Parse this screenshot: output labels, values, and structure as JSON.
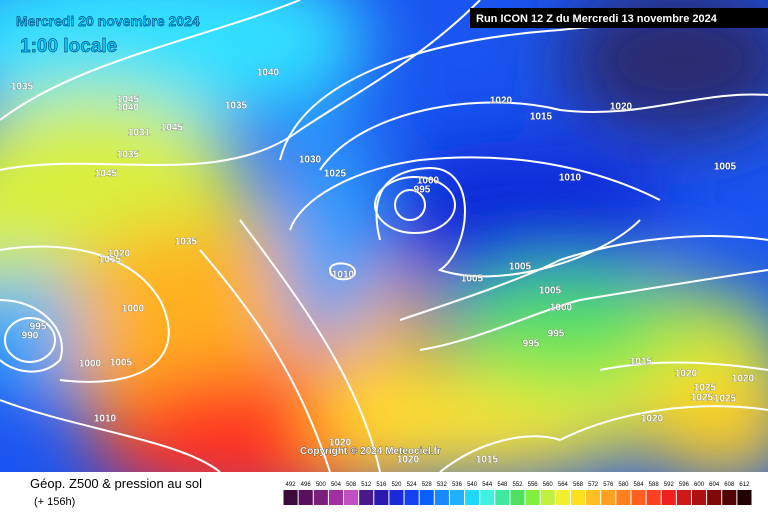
{
  "header": {
    "date": "Mercredi 20 novembre 2024",
    "time": "1:00 locale",
    "run": "Run ICON 12 Z du Mercredi 13 novembre 2024"
  },
  "map": {
    "isobar_labels": [
      1035,
      1045,
      1040,
      1035,
      1040,
      1031,
      1045,
      1035,
      1045,
      1030,
      1025,
      1035,
      1020,
      1015,
      1000,
      995,
      990,
      1000,
      1005,
      1010,
      1010,
      1000,
      995,
      1020,
      1015,
      1020,
      1010,
      1005,
      1005,
      1005,
      1005,
      1000,
      995,
      995,
      1015,
      1020,
      1025,
      1025,
      1025,
      1020,
      1020,
      1020,
      1020,
      1015
    ],
    "copyright": "Copyright © 2024 Meteociel.fr"
  },
  "footer": {
    "title": "Géop. Z500 & pression au sol",
    "lead": "(+ 156h)"
  },
  "legend": {
    "values": [
      492,
      496,
      500,
      504,
      508,
      512,
      516,
      520,
      524,
      528,
      532,
      536,
      540,
      544,
      548,
      552,
      556,
      560,
      564,
      568,
      572,
      576,
      580,
      584,
      588,
      592,
      596,
      600,
      604,
      608,
      612
    ],
    "colors": [
      "#3b0a3b",
      "#5a0e5e",
      "#7a1f7a",
      "#a030a0",
      "#c050c0",
      "#4a1a8a",
      "#2a1ab0",
      "#1a2ad8",
      "#1540f0",
      "#0a60ff",
      "#1a88ff",
      "#20b0ff",
      "#20d8ff",
      "#40f0e0",
      "#40e8a0",
      "#50e060",
      "#80f040",
      "#c0f040",
      "#f0f030",
      "#ffe020",
      "#ffc020",
      "#ffa020",
      "#ff8020",
      "#ff6020",
      "#ff4020",
      "#f02020",
      "#d01818",
      "#b01010",
      "#800808",
      "#500404",
      "#200000"
    ]
  }
}
